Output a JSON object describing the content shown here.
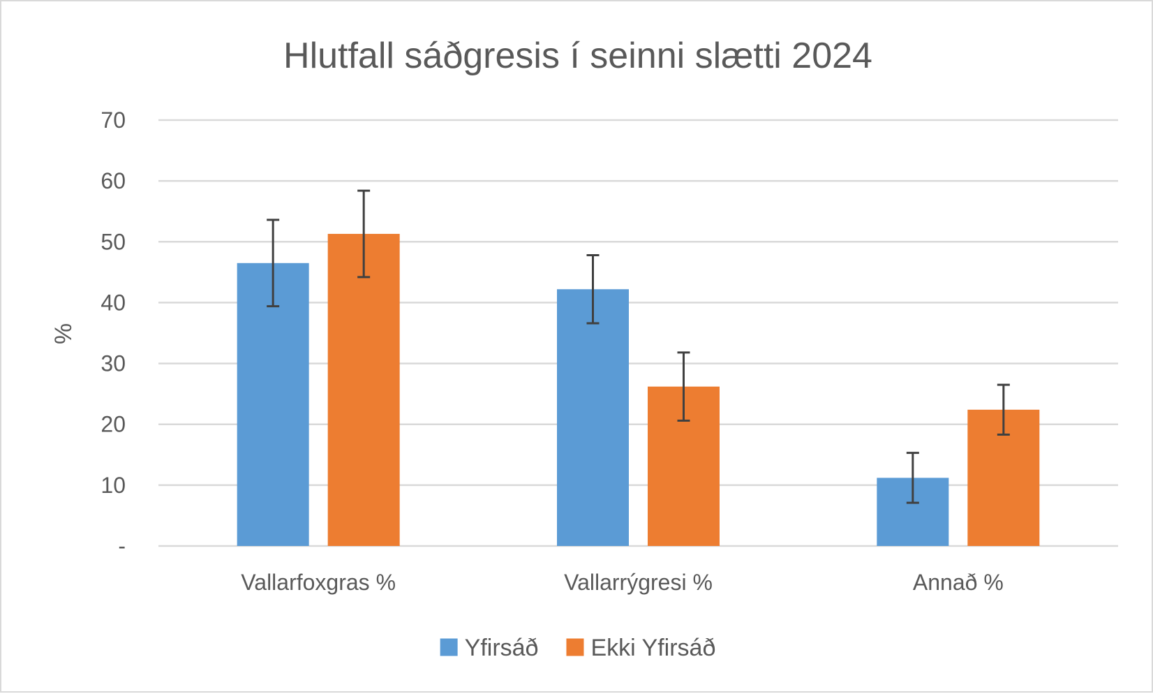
{
  "chart_data": {
    "type": "bar",
    "title": "Hlutfall sáðgresis í seinni slætti 2024",
    "ylabel": "%",
    "xlabel": "",
    "ylim": [
      0,
      70
    ],
    "yticks": [
      0,
      10,
      20,
      30,
      40,
      50,
      60,
      70
    ],
    "ytick_labels": [
      "-",
      "10",
      "20",
      "30",
      "40",
      "50",
      "60",
      "70"
    ],
    "grid": true,
    "legend_position": "bottom",
    "categories": [
      "Vallarfoxgras %",
      "Vallarrýgresi %",
      "Annað %"
    ],
    "series": [
      {
        "name": "Yfirsáð",
        "color": "#5b9bd5",
        "values": [
          46.5,
          42.2,
          11.2
        ],
        "error": [
          7.1,
          5.6,
          4.1
        ]
      },
      {
        "name": "Ekki Yfirsáð",
        "color": "#ed7d31",
        "values": [
          51.3,
          26.2,
          22.4
        ],
        "error": [
          7.1,
          5.6,
          4.1
        ]
      }
    ],
    "colors": {
      "gridline": "#d9d9d9",
      "text": "#595959",
      "error_bar": "#404040"
    }
  }
}
